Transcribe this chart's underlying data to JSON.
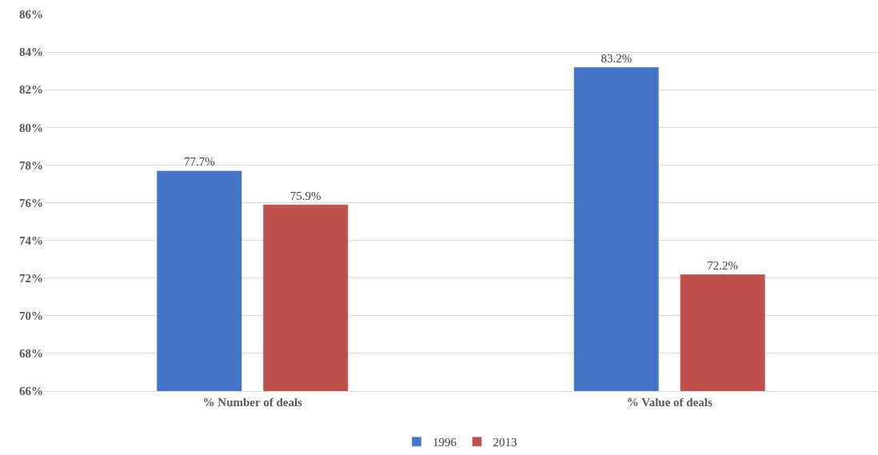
{
  "chart_data": {
    "type": "bar",
    "categories": [
      "% Number of deals",
      "% Value of deals"
    ],
    "series": [
      {
        "name": "1996",
        "color": "#4472c4",
        "values": [
          77.7,
          83.2
        ],
        "value_labels": [
          "77.7%",
          "83.2%"
        ]
      },
      {
        "name": "2013",
        "color": "#c0504d",
        "values": [
          75.9,
          72.2
        ],
        "value_labels": [
          "75.9%",
          "72.2%"
        ]
      }
    ],
    "ylim": [
      66,
      86
    ],
    "yticks": [
      {
        "value": 66,
        "label": "66%"
      },
      {
        "value": 68,
        "label": "68%"
      },
      {
        "value": 70,
        "label": "70%"
      },
      {
        "value": 72,
        "label": "72%"
      },
      {
        "value": 74,
        "label": "74%"
      },
      {
        "value": 76,
        "label": "76%"
      },
      {
        "value": 78,
        "label": "78%"
      },
      {
        "value": 80,
        "label": "80%"
      },
      {
        "value": 82,
        "label": "82%"
      },
      {
        "value": 84,
        "label": "84%"
      },
      {
        "value": 86,
        "label": "86%"
      }
    ],
    "grid": "y",
    "legend": "bottom"
  }
}
